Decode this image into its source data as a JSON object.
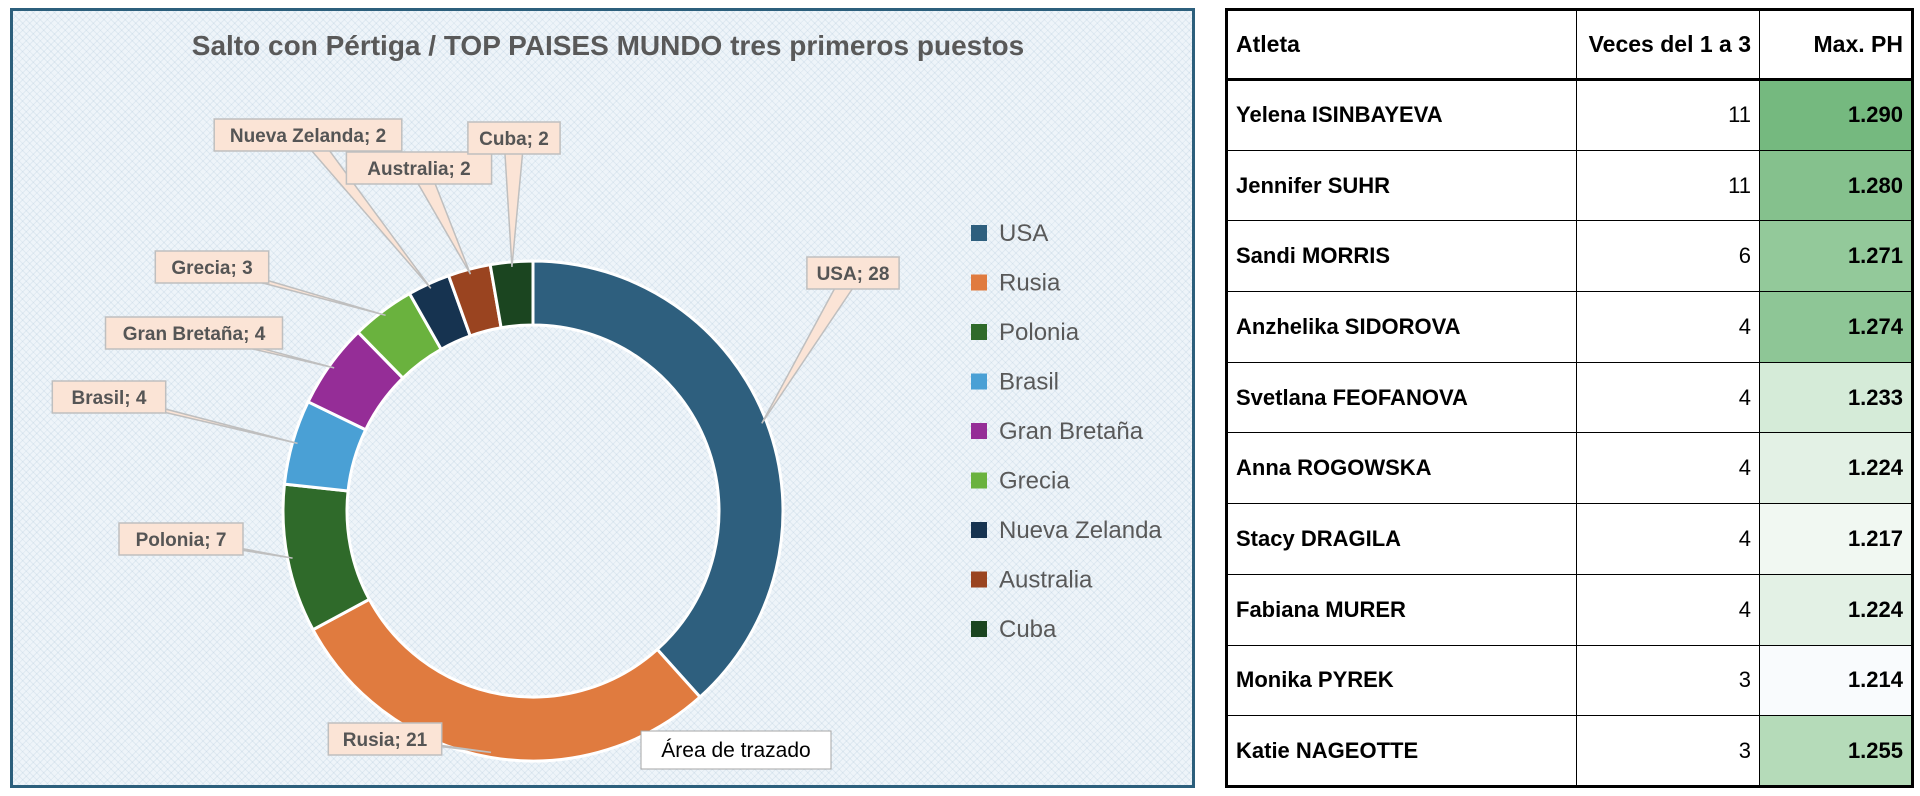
{
  "chart_data": {
    "type": "donut",
    "title": "Salto con Pértiga / TOP PAISES MUNDO tres primeros puestos",
    "slices": [
      {
        "name": "USA",
        "value": 28,
        "color": "#2e5f7e",
        "label": "USA; 28"
      },
      {
        "name": "Rusia",
        "value": 21,
        "color": "#e07b3f",
        "label": "Rusia; 21"
      },
      {
        "name": "Polonia",
        "value": 7,
        "color": "#2f6a2a",
        "label": "Polonia; 7"
      },
      {
        "name": "Brasil",
        "value": 4,
        "color": "#4aa0d5",
        "label": "Brasil; 4"
      },
      {
        "name": "Gran Bretaña",
        "value": 4,
        "color": "#952d97",
        "label": "Gran Bretaña; 4"
      },
      {
        "name": "Grecia",
        "value": 3,
        "color": "#6ab23e",
        "label": "Grecia; 3"
      },
      {
        "name": "Nueva Zelanda",
        "value": 2,
        "color": "#163350",
        "label": "Nueva Zelanda; 2"
      },
      {
        "name": "Australia",
        "value": 2,
        "color": "#9a4420",
        "label": "Australia; 2"
      },
      {
        "name": "Cuba",
        "value": 2,
        "color": "#1b4520",
        "label": "Cuba; 2"
      }
    ],
    "legend_position": "right",
    "tooltip": "Área de trazado"
  },
  "table": {
    "headers": [
      "Atleta",
      "Veces del 1 a 3",
      "Max. PH"
    ],
    "rows": [
      {
        "name": "Yelena ISINBAYEVA",
        "times": "11",
        "max": "1.290",
        "fill": "#75b97f"
      },
      {
        "name": "Jennifer SUHR",
        "times": "11",
        "max": "1.280",
        "fill": "#85c18d"
      },
      {
        "name": "Sandi MORRIS",
        "times": "6",
        "max": "1.271",
        "fill": "#93c99a"
      },
      {
        "name": "Anzhelika SIDOROVA",
        "times": "4",
        "max": "1.274",
        "fill": "#8ec696"
      },
      {
        "name": "Svetlana FEOFANOVA",
        "times": "4",
        "max": "1.233",
        "fill": "#d5ebd8"
      },
      {
        "name": "Anna ROGOWSKA",
        "times": "4",
        "max": "1.224",
        "fill": "#e3f1e5"
      },
      {
        "name": "Stacy DRAGILA",
        "times": "4",
        "max": "1.217",
        "fill": "#f1f8f2"
      },
      {
        "name": "Fabiana MURER",
        "times": "4",
        "max": "1.224",
        "fill": "#e3f1e5"
      },
      {
        "name": "Monika PYREK",
        "times": "3",
        "max": "1.214",
        "fill": "#f9fbfd"
      },
      {
        "name": "Katie NAGEOTTE",
        "times": "3",
        "max": "1.255",
        "fill": "#b5dbb9"
      }
    ]
  }
}
